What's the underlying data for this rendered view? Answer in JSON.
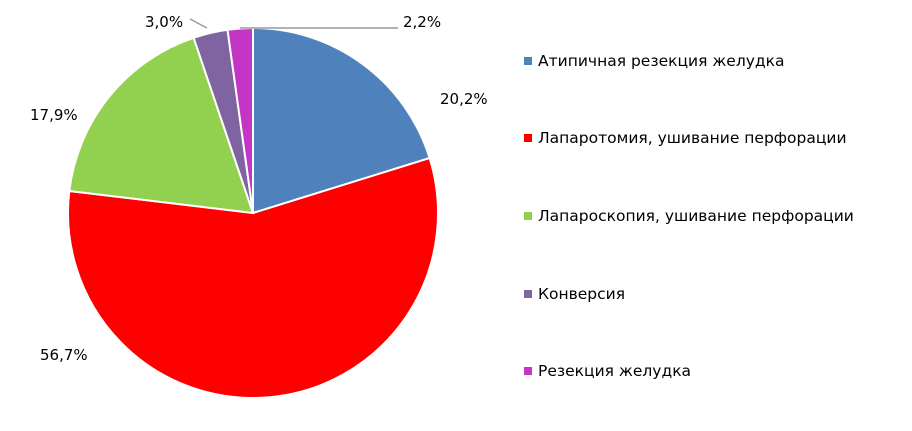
{
  "chart_data": {
    "type": "pie",
    "start_angle": "12 o'clock",
    "direction": "clockwise",
    "legend_position": "right",
    "series": [
      {
        "name": "Атипичная резекция желудка",
        "value": 20.2,
        "label": "20,2%",
        "color": "#4F81BD"
      },
      {
        "name": "Лапаротомия, ушивание перфорации",
        "value": 56.7,
        "label": "56,7%",
        "color": "#FF0000"
      },
      {
        "name": "Лапароскопия, ушивание перфорации",
        "value": 17.9,
        "label": "17,9%",
        "color": "#92D050"
      },
      {
        "name": "Конверсия",
        "value": 3.0,
        "label": "3,0%",
        "color": "#8064A2"
      },
      {
        "name": "Резекция желудка",
        "value": 2.2,
        "label": "2,2%",
        "color": "#C535C5"
      }
    ]
  }
}
